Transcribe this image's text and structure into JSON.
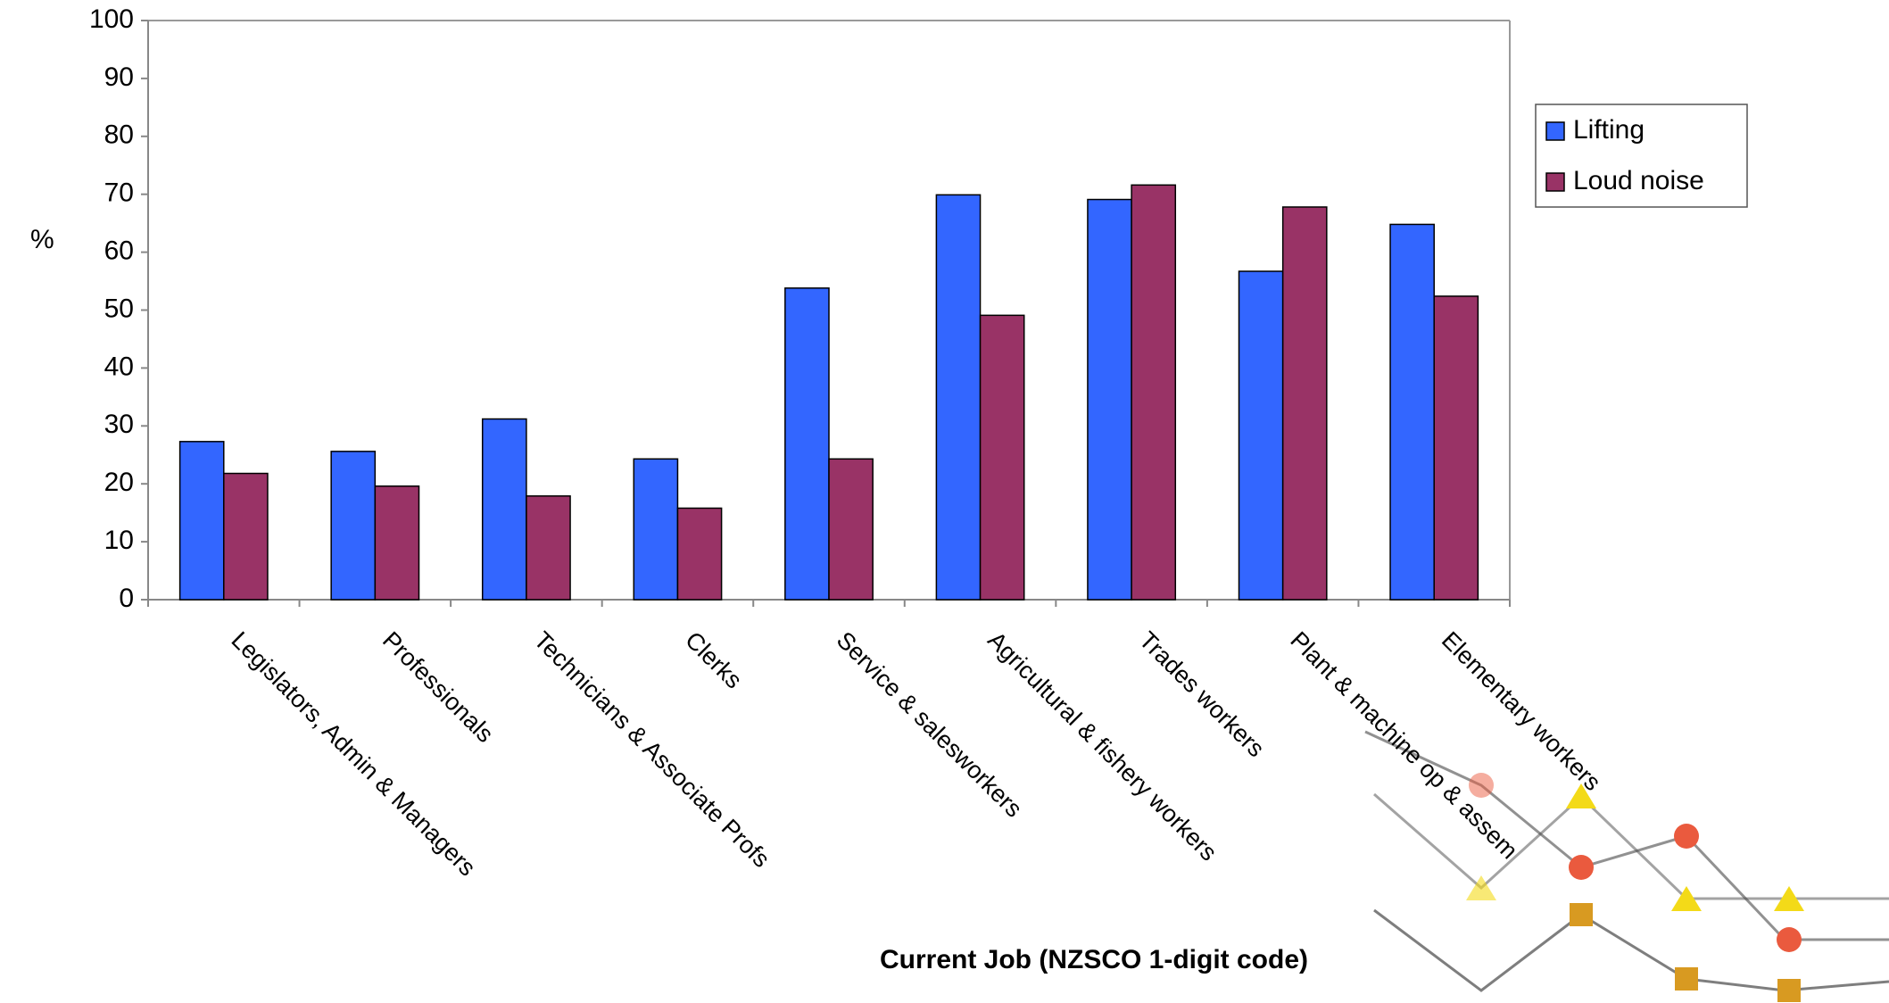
{
  "chart_data": {
    "type": "bar",
    "y_label": "%",
    "x_label": "Current Job (NZSCO 1-digit code)",
    "categories": [
      "Legislators, Admin & Managers",
      "Professionals",
      "Technicians & Associate Profs",
      "Clerks",
      "Service & salesworkers",
      "Agricultural & fishery workers",
      "Trades workers",
      "Plant & machine op & assem",
      "Elementary workers"
    ],
    "series": [
      {
        "name": "Lifting",
        "color": "#3366ff",
        "values": [
          27.3,
          25.6,
          31.2,
          24.3,
          53.8,
          69.9,
          69.1,
          56.7,
          64.8
        ]
      },
      {
        "name": "Loud noise",
        "color": "#993366",
        "values": [
          21.8,
          19.6,
          17.9,
          15.8,
          24.3,
          49.1,
          71.6,
          67.8,
          52.4
        ]
      }
    ],
    "ylim": [
      0,
      100
    ],
    "yticks": [
      0,
      10,
      20,
      30,
      40,
      50,
      60,
      70,
      80,
      90,
      100
    ],
    "grid": false,
    "legend": "right"
  }
}
